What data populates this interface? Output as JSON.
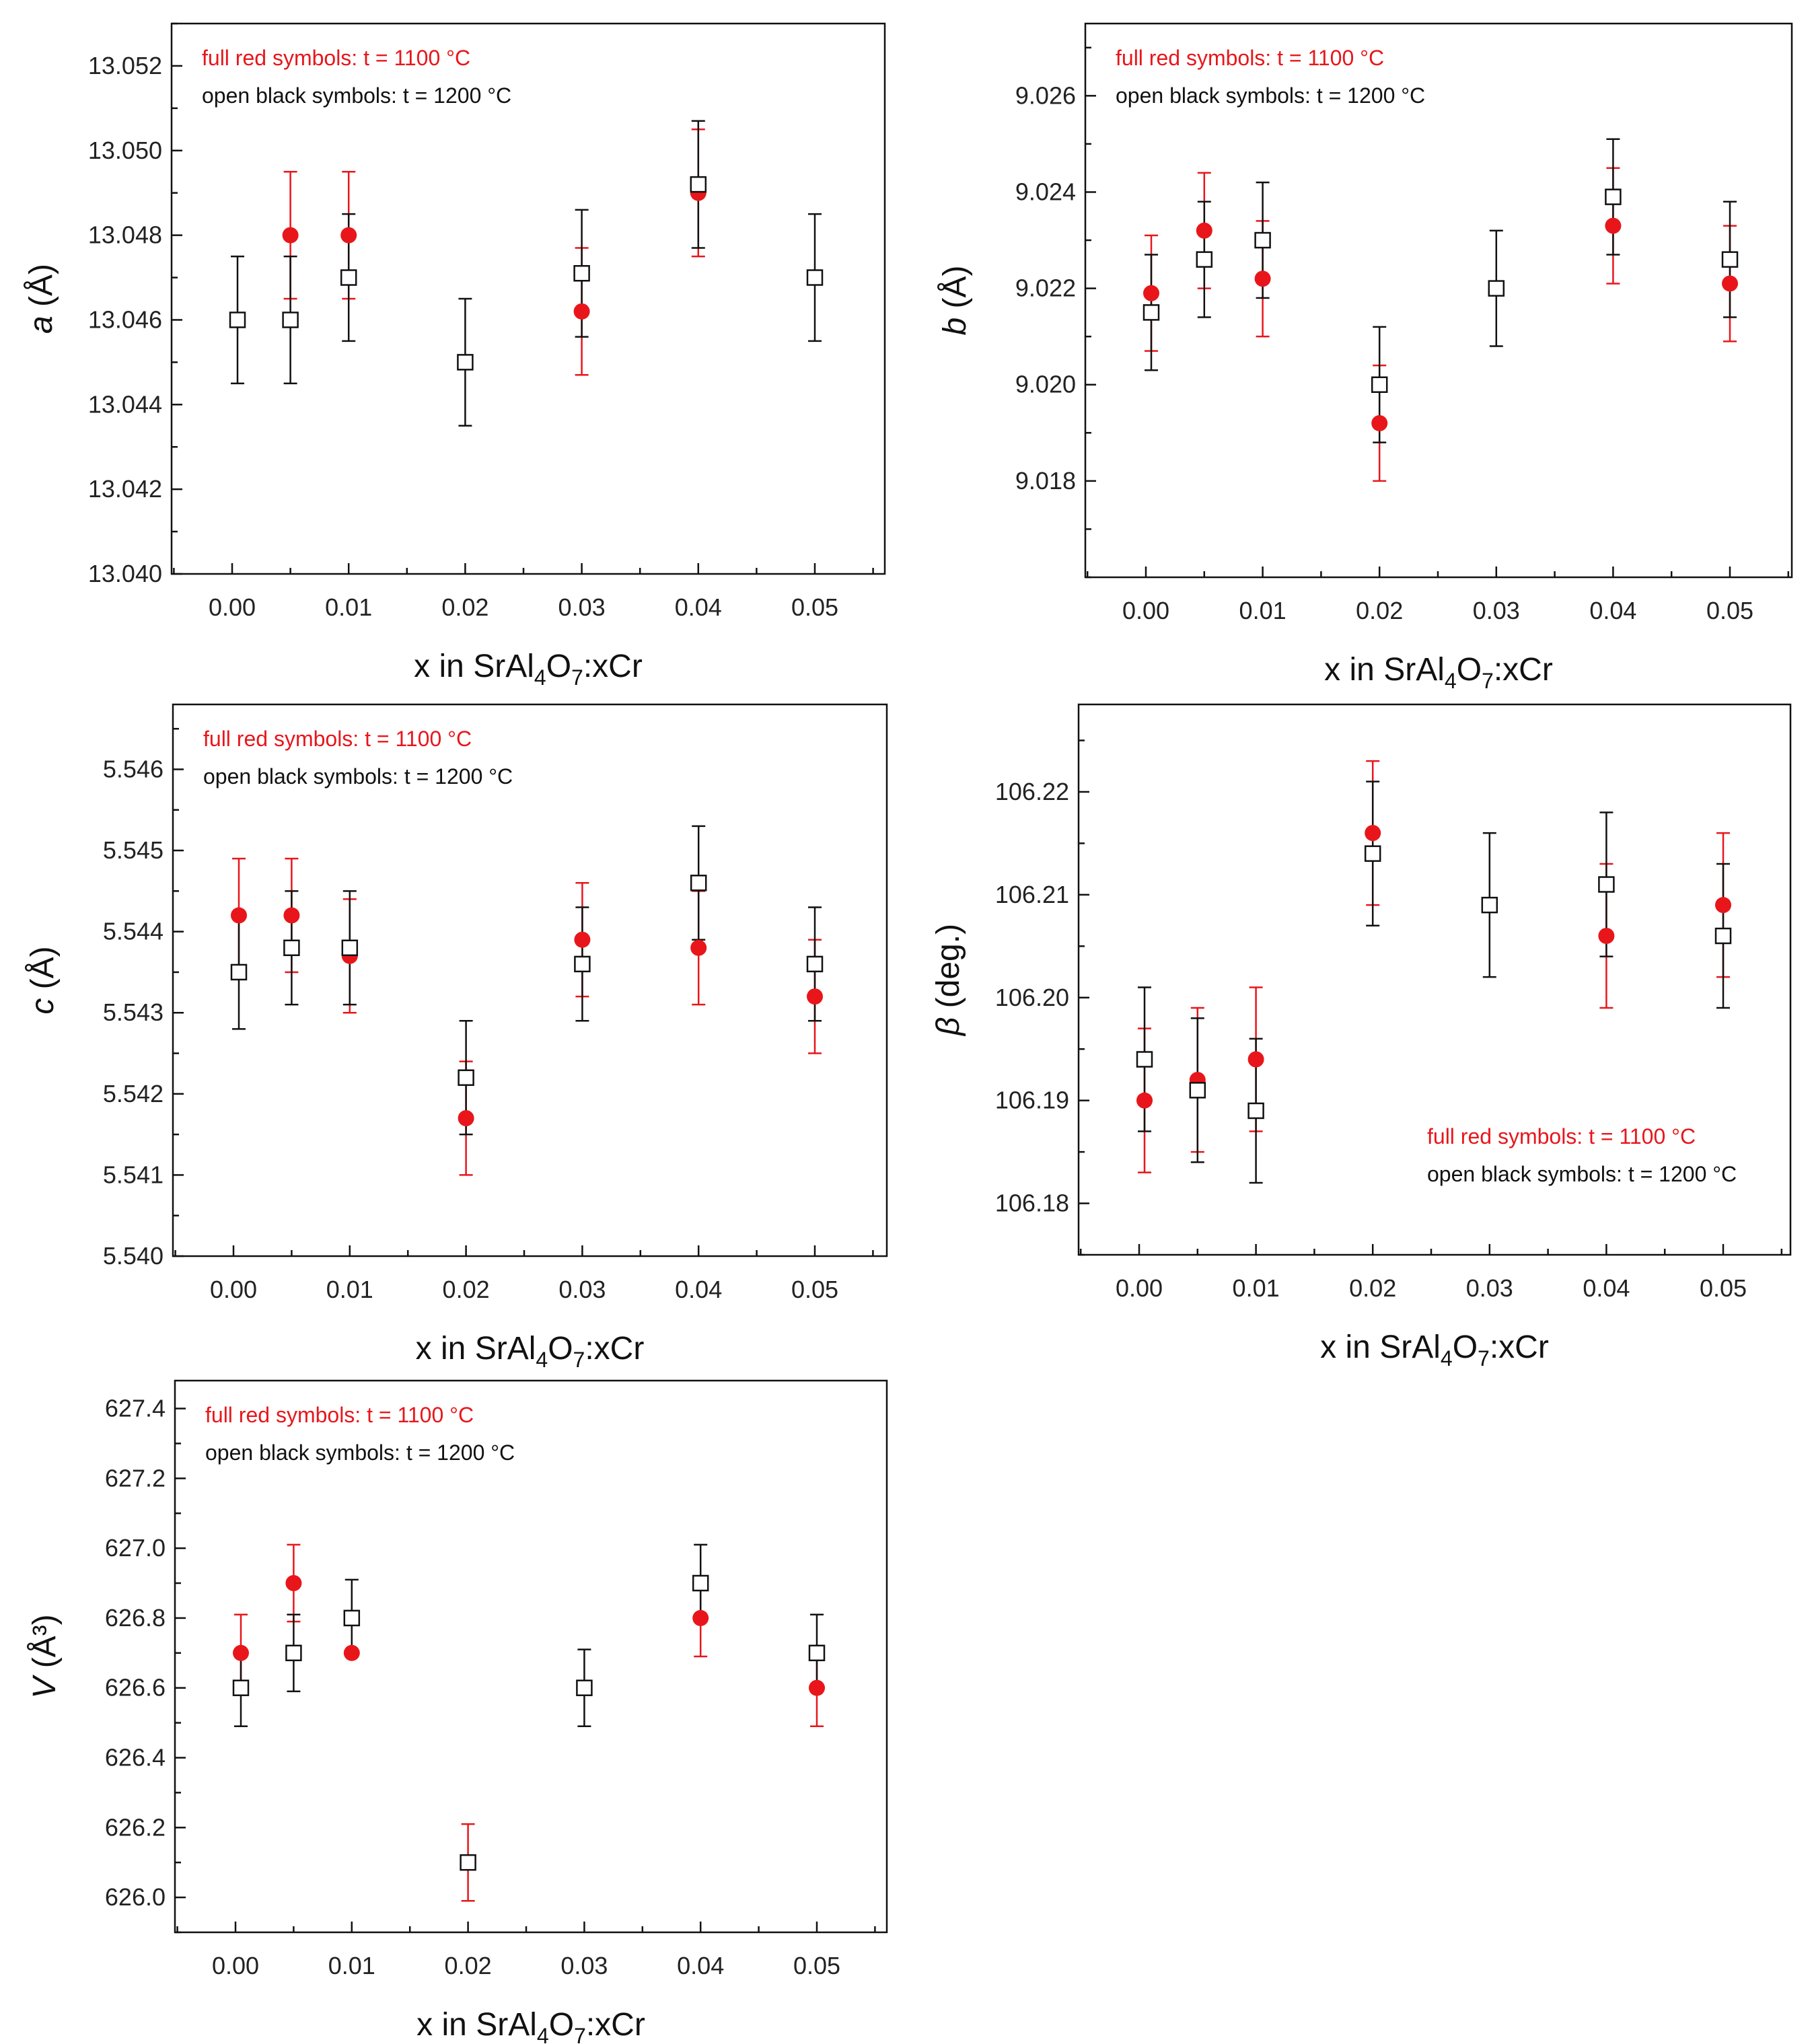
{
  "figure": {
    "colors": {
      "red": "#e8161b",
      "black": "#111111",
      "frame": "#111111"
    },
    "legend": {
      "red_text": "full red symbols: t = 1100 °C",
      "black_text": "open black symbols: t = 1200 °C"
    }
  },
  "chart_data": [
    {
      "id": "a",
      "type": "scatter",
      "ylabel_symbol": "a",
      "ylabel_unit": "(Å)",
      "xlabel": "x in SrAl4O7:xCr",
      "x_ticks": [
        "0.00",
        "0.01",
        "0.02",
        "0.03",
        "0.04",
        "0.05"
      ],
      "ylim": [
        13.04,
        13.053
      ],
      "y_ticks": [
        "13.040",
        "13.042",
        "13.044",
        "13.046",
        "13.048",
        "13.050",
        "13.052"
      ],
      "legend_position": "top-left",
      "series": [
        {
          "name": "full red symbols: t = 1100 °C",
          "style": "filled-circle",
          "points": [
            {
              "x": 0.0,
              "y": 13.046,
              "err": 0.0
            },
            {
              "x": 0.005,
              "y": 13.048,
              "err": 0.0015
            },
            {
              "x": 0.01,
              "y": 13.048,
              "err": 0.0015
            },
            {
              "x": 0.02,
              "y": 13.045,
              "err": 0.0
            },
            {
              "x": 0.03,
              "y": 13.0462,
              "err": 0.0015
            },
            {
              "x": 0.04,
              "y": 13.049,
              "err": 0.0015
            }
          ]
        },
        {
          "name": "open black symbols: t = 1200 °C",
          "style": "open-square",
          "points": [
            {
              "x": 0.0,
              "y": 13.046,
              "err": 0.0015
            },
            {
              "x": 0.005,
              "y": 13.046,
              "err": 0.0015
            },
            {
              "x": 0.01,
              "y": 13.047,
              "err": 0.0015
            },
            {
              "x": 0.02,
              "y": 13.045,
              "err": 0.0015
            },
            {
              "x": 0.03,
              "y": 13.0471,
              "err": 0.0015
            },
            {
              "x": 0.04,
              "y": 13.0492,
              "err": 0.0015
            },
            {
              "x": 0.05,
              "y": 13.047,
              "err": 0.0015
            }
          ]
        }
      ]
    },
    {
      "id": "b",
      "type": "scatter",
      "ylabel_symbol": "b",
      "ylabel_unit": "(Å)",
      "xlabel": "x in SrAl4O7:xCr",
      "x_ticks": [
        "0.00",
        "0.01",
        "0.02",
        "0.03",
        "0.04",
        "0.05"
      ],
      "ylim": [
        9.016,
        9.0275
      ],
      "y_ticks": [
        "9.018",
        "9.020",
        "9.022",
        "9.024",
        "9.026"
      ],
      "legend_position": "top-left",
      "series": [
        {
          "name": "full red symbols: t = 1100 °C",
          "style": "filled-circle",
          "points": [
            {
              "x": 0.0,
              "y": 9.0219,
              "err": 0.0012
            },
            {
              "x": 0.005,
              "y": 9.0232,
              "err": 0.0012
            },
            {
              "x": 0.01,
              "y": 9.0222,
              "err": 0.0012
            },
            {
              "x": 0.02,
              "y": 9.0192,
              "err": 0.0012
            },
            {
              "x": 0.03,
              "y": 9.022,
              "err": 0.0
            },
            {
              "x": 0.04,
              "y": 9.0233,
              "err": 0.0012
            },
            {
              "x": 0.05,
              "y": 9.0221,
              "err": 0.0012
            }
          ]
        },
        {
          "name": "open black symbols: t = 1200 °C",
          "style": "open-square",
          "points": [
            {
              "x": 0.0,
              "y": 9.0215,
              "err": 0.0012
            },
            {
              "x": 0.005,
              "y": 9.0226,
              "err": 0.0012
            },
            {
              "x": 0.01,
              "y": 9.023,
              "err": 0.0012
            },
            {
              "x": 0.02,
              "y": 9.02,
              "err": 0.0012
            },
            {
              "x": 0.03,
              "y": 9.022,
              "err": 0.0012
            },
            {
              "x": 0.04,
              "y": 9.0239,
              "err": 0.0012
            },
            {
              "x": 0.05,
              "y": 9.0226,
              "err": 0.0012
            }
          ]
        }
      ]
    },
    {
      "id": "c",
      "type": "scatter",
      "ylabel_symbol": "c",
      "ylabel_unit": "(Å)",
      "xlabel": "x in SrAl4O7:xCr",
      "x_ticks": [
        "0.00",
        "0.01",
        "0.02",
        "0.03",
        "0.04",
        "0.05"
      ],
      "ylim": [
        5.54,
        5.5468
      ],
      "y_ticks": [
        "5.540",
        "5.541",
        "5.542",
        "5.543",
        "5.544",
        "5.545",
        "5.546"
      ],
      "legend_position": "top-left",
      "series": [
        {
          "name": "full red symbols: t = 1100 °C",
          "style": "filled-circle",
          "points": [
            {
              "x": 0.0,
              "y": 5.5442,
              "err": 0.0007
            },
            {
              "x": 0.005,
              "y": 5.5442,
              "err": 0.0007
            },
            {
              "x": 0.01,
              "y": 5.5437,
              "err": 0.0007
            },
            {
              "x": 0.02,
              "y": 5.5417,
              "err": 0.0007
            },
            {
              "x": 0.03,
              "y": 5.5439,
              "err": 0.0007
            },
            {
              "x": 0.04,
              "y": 5.5438,
              "err": 0.0007
            },
            {
              "x": 0.05,
              "y": 5.5432,
              "err": 0.0007
            }
          ]
        },
        {
          "name": "open black symbols: t = 1200 °C",
          "style": "open-square",
          "points": [
            {
              "x": 0.0,
              "y": 5.5435,
              "err": 0.0007
            },
            {
              "x": 0.005,
              "y": 5.5438,
              "err": 0.0007
            },
            {
              "x": 0.01,
              "y": 5.5438,
              "err": 0.0007
            },
            {
              "x": 0.02,
              "y": 5.5422,
              "err": 0.0007
            },
            {
              "x": 0.03,
              "y": 5.5436,
              "err": 0.0007
            },
            {
              "x": 0.04,
              "y": 5.5446,
              "err": 0.0007
            },
            {
              "x": 0.05,
              "y": 5.5436,
              "err": 0.0007
            }
          ]
        }
      ]
    },
    {
      "id": "beta",
      "type": "scatter",
      "ylabel_symbol": "β",
      "ylabel_unit": "(deg.)",
      "xlabel": "x in SrAl4O7:xCr",
      "x_ticks": [
        "0.00",
        "0.01",
        "0.02",
        "0.03",
        "0.04",
        "0.05"
      ],
      "ylim": [
        106.175,
        106.2285
      ],
      "y_ticks": [
        "106.18",
        "106.19",
        "106.20",
        "106.21",
        "106.22"
      ],
      "legend_position": "bottom-right",
      "series": [
        {
          "name": "full red symbols: t = 1100 °C",
          "style": "filled-circle",
          "points": [
            {
              "x": 0.0,
              "y": 106.19,
              "err": 0.007
            },
            {
              "x": 0.005,
              "y": 106.192,
              "err": 0.007
            },
            {
              "x": 0.01,
              "y": 106.194,
              "err": 0.007
            },
            {
              "x": 0.02,
              "y": 106.216,
              "err": 0.007
            },
            {
              "x": 0.03,
              "y": 106.209,
              "err": 0.0
            },
            {
              "x": 0.04,
              "y": 106.206,
              "err": 0.007
            },
            {
              "x": 0.05,
              "y": 106.209,
              "err": 0.007
            }
          ]
        },
        {
          "name": "open black symbols: t = 1200 °C",
          "style": "open-square",
          "points": [
            {
              "x": 0.0,
              "y": 106.194,
              "err": 0.007
            },
            {
              "x": 0.005,
              "y": 106.191,
              "err": 0.007
            },
            {
              "x": 0.01,
              "y": 106.189,
              "err": 0.007
            },
            {
              "x": 0.02,
              "y": 106.214,
              "err": 0.007
            },
            {
              "x": 0.03,
              "y": 106.209,
              "err": 0.007
            },
            {
              "x": 0.04,
              "y": 106.211,
              "err": 0.007
            },
            {
              "x": 0.05,
              "y": 106.206,
              "err": 0.007
            }
          ]
        }
      ]
    },
    {
      "id": "V",
      "type": "scatter",
      "ylabel_symbol": "V",
      "ylabel_unit": "(Å³)",
      "xlabel": "x in SrAl4O7:xCr",
      "x_ticks": [
        "0.00",
        "0.01",
        "0.02",
        "0.03",
        "0.04",
        "0.05"
      ],
      "ylim": [
        625.9,
        627.48
      ],
      "y_ticks": [
        "626.0",
        "626.2",
        "626.4",
        "626.6",
        "626.8",
        "627.0",
        "627.2",
        "627.4"
      ],
      "legend_position": "top-left",
      "series": [
        {
          "name": "full red symbols: t = 1100 °C",
          "style": "filled-circle",
          "points": [
            {
              "x": 0.0,
              "y": 626.7,
              "err": 0.11
            },
            {
              "x": 0.005,
              "y": 626.9,
              "err": 0.11
            },
            {
              "x": 0.01,
              "y": 626.7,
              "err": 0.0
            },
            {
              "x": 0.02,
              "y": 626.1,
              "err": 0.11
            },
            {
              "x": 0.03,
              "y": 626.6,
              "err": 0.0
            },
            {
              "x": 0.04,
              "y": 626.8,
              "err": 0.11
            },
            {
              "x": 0.05,
              "y": 626.6,
              "err": 0.11
            }
          ]
        },
        {
          "name": "open black symbols: t = 1200 °C",
          "style": "open-square",
          "points": [
            {
              "x": 0.0,
              "y": 626.6,
              "err": 0.11
            },
            {
              "x": 0.005,
              "y": 626.7,
              "err": 0.11
            },
            {
              "x": 0.01,
              "y": 626.8,
              "err": 0.11
            },
            {
              "x": 0.02,
              "y": 626.1,
              "err": 0.0
            },
            {
              "x": 0.03,
              "y": 626.6,
              "err": 0.11
            },
            {
              "x": 0.04,
              "y": 626.9,
              "err": 0.11
            },
            {
              "x": 0.05,
              "y": 626.7,
              "err": 0.11
            }
          ]
        }
      ]
    }
  ]
}
